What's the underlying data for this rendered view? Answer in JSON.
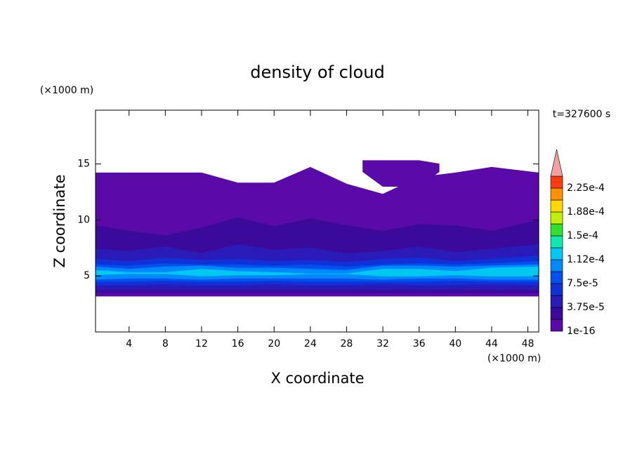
{
  "chart_data": {
    "type": "contour",
    "title": "density of cloud",
    "xlabel": "X coordinate",
    "ylabel": "Z coordinate",
    "x_unit": "(×1000 m)",
    "y_unit": "(×1000 m)",
    "time_label": "t=327600 s",
    "xlim": [
      0.3,
      49.2
    ],
    "ylim": [
      0,
      19.8
    ],
    "xticks": [
      4,
      8,
      12,
      16,
      20,
      24,
      28,
      32,
      36,
      40,
      44,
      48
    ],
    "yticks": [
      5,
      10,
      15
    ],
    "colorbar": {
      "levels": [
        {
          "value": 1e-16,
          "label": "1e-16"
        },
        1.875e-05,
        {
          "value": 3.75e-05,
          "label": "3.75e-5"
        },
        5.625e-05,
        {
          "value": 7.5e-05,
          "label": "7.5e-5"
        },
        9.375e-05,
        {
          "value": 0.000112,
          "label": "1.12e-4"
        },
        0.000131,
        {
          "value": 0.00015,
          "label": "1.5e-4"
        },
        0.000169,
        {
          "value": 0.000188,
          "label": "1.88e-4"
        },
        0.000206,
        {
          "value": 0.000225,
          "label": "2.25e-4"
        }
      ],
      "colors": [
        "#5a0aa8",
        "#3c0a9a",
        "#2a1ab8",
        "#1030d8",
        "#0050f0",
        "#0088ff",
        "#00c8f0",
        "#10e8b0",
        "#30e030",
        "#c0f000",
        "#ffd800",
        "#ff9000",
        "#ff3c10"
      ],
      "extend_color": "#f4a0a0"
    },
    "regions": [
      {
        "value": 1e-16,
        "x": [
          0.3,
          4,
          8,
          12,
          16,
          20,
          24,
          28,
          32,
          36,
          40,
          44,
          49.2
        ],
        "z_bottom": [
          3.2,
          3.2,
          3.2,
          3.2,
          3.2,
          3.2,
          3.2,
          3.2,
          3.2,
          3.2,
          3.2,
          3.2,
          3.2
        ],
        "z_top": [
          14.2,
          14.2,
          14.2,
          14.2,
          13.3,
          13.3,
          14.7,
          13.2,
          12.3,
          13.8,
          14.2,
          14.7,
          14.2
        ]
      },
      {
        "value": 1e-16,
        "x": [
          29.8,
          32,
          36,
          38.2
        ],
        "z_bottom": [
          14.3,
          13.0,
          13.0,
          14.3
        ],
        "z_top": [
          15.3,
          15.3,
          15.3,
          15.0
        ]
      },
      {
        "value": 1.875e-05,
        "x": [
          0.3,
          4,
          8,
          12,
          16,
          20,
          24,
          28,
          32,
          36,
          40,
          44,
          49.2
        ],
        "z_bottom": [
          3.5,
          3.5,
          3.5,
          3.5,
          3.5,
          3.5,
          3.5,
          3.5,
          3.5,
          3.5,
          3.5,
          3.5,
          3.5
        ],
        "z_top": [
          9.5,
          9.0,
          8.6,
          9.3,
          10.2,
          9.4,
          10.1,
          9.5,
          9.0,
          9.6,
          9.5,
          9.0,
          10.0
        ]
      },
      {
        "value": 3.75e-05,
        "x": [
          0.3,
          4,
          8,
          12,
          16,
          20,
          24,
          28,
          32,
          36,
          40,
          44,
          49.2
        ],
        "z_bottom": [
          3.8,
          3.8,
          3.8,
          3.8,
          3.8,
          3.8,
          3.8,
          3.8,
          3.8,
          3.8,
          3.8,
          3.8,
          3.8
        ],
        "z_top": [
          7.4,
          7.2,
          7.6,
          7.0,
          7.8,
          7.3,
          7.5,
          7.0,
          7.2,
          7.6,
          7.1,
          7.4,
          7.8
        ]
      },
      {
        "value": 5.625e-05,
        "x": [
          0.3,
          4,
          8,
          12,
          16,
          20,
          24,
          28,
          32,
          36,
          40,
          44,
          49.2
        ],
        "z_bottom": [
          4.2,
          4.2,
          4.3,
          4.2,
          4.2,
          4.3,
          4.2,
          4.2,
          4.3,
          4.2,
          4.2,
          4.3,
          4.2
        ],
        "z_top": [
          6.5,
          6.3,
          6.6,
          6.4,
          6.5,
          6.3,
          6.4,
          6.2,
          6.5,
          6.6,
          6.3,
          6.5,
          6.8
        ]
      },
      {
        "value": 7.5e-05,
        "x": [
          0.3,
          4,
          8,
          12,
          16,
          20,
          24,
          28,
          32,
          36,
          40,
          44,
          49.2
        ],
        "z_bottom": [
          4.5,
          4.5,
          4.6,
          4.5,
          4.5,
          4.6,
          4.5,
          4.5,
          4.5,
          4.5,
          4.6,
          4.5,
          4.5
        ],
        "z_top": [
          6.0,
          5.9,
          6.1,
          6.0,
          6.0,
          5.9,
          6.0,
          5.8,
          6.0,
          6.1,
          6.0,
          6.1,
          6.3
        ]
      },
      {
        "value": 9.375e-05,
        "x": [
          0.3,
          4,
          8,
          12,
          16,
          20,
          24,
          28,
          32,
          36,
          40,
          44,
          49.2
        ],
        "z_bottom": [
          4.7,
          4.8,
          4.8,
          4.7,
          4.8,
          4.8,
          4.8,
          4.8,
          4.7,
          4.8,
          4.8,
          4.7,
          4.7
        ],
        "z_top": [
          5.8,
          5.6,
          5.8,
          5.9,
          5.7,
          5.7,
          5.6,
          5.5,
          5.9,
          5.9,
          5.8,
          5.9,
          6.0
        ]
      },
      {
        "value": 0.000112,
        "x": [
          0.3,
          4,
          8,
          12,
          16,
          20,
          24,
          28,
          32,
          36,
          40,
          44,
          49.2
        ],
        "z_bottom": [
          5.1,
          5.2,
          5.2,
          5.0,
          5.1,
          5.1,
          5.2,
          5.2,
          5.0,
          5.0,
          5.1,
          5.0,
          5.0
        ],
        "z_top": [
          5.5,
          5.3,
          5.3,
          5.6,
          5.4,
          5.3,
          5.2,
          5.2,
          5.6,
          5.6,
          5.4,
          5.7,
          5.8
        ]
      }
    ]
  }
}
